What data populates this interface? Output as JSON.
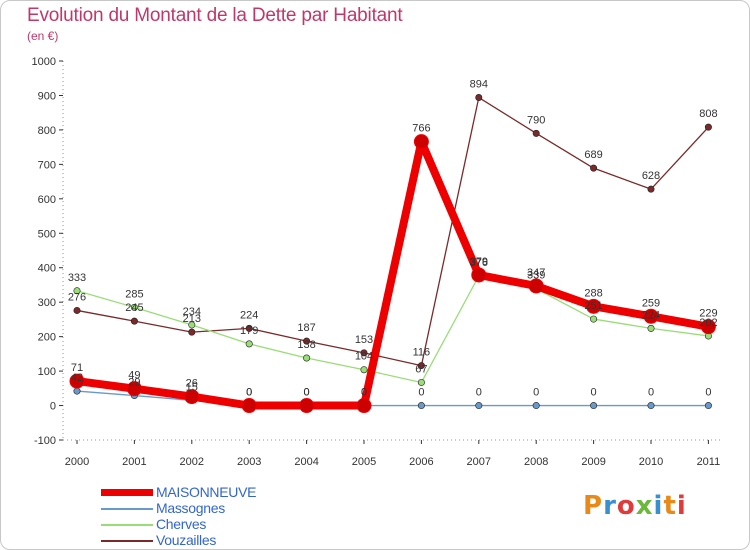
{
  "title": "Evolution du Montant de la Dette par Habitant",
  "subtitle": "(en €)",
  "logo": "Proxiti",
  "chart_data": {
    "type": "line",
    "title": "Evolution du Montant de la Dette par Habitant",
    "subtitle": "(en €)",
    "xlabel": "",
    "ylabel": "",
    "x": [
      "2000",
      "2001",
      "2002",
      "2003",
      "2004",
      "2005",
      "2006",
      "2007",
      "2008",
      "2009",
      "2010",
      "2011"
    ],
    "ylim": [
      -100,
      1000
    ],
    "yticks": [
      -100,
      0,
      100,
      200,
      300,
      400,
      500,
      600,
      700,
      800,
      900,
      1000
    ],
    "grid": false,
    "legend_position": "bottom-left",
    "series": [
      {
        "name": "MAISONNEUVE",
        "color": "#ee0000",
        "values": [
          71,
          49,
          26,
          0,
          0,
          0,
          766,
          379,
          347,
          288,
          259,
          229
        ]
      },
      {
        "name": "Massognes",
        "color": "#6699cc",
        "values": [
          42,
          29,
          15,
          0,
          0,
          0,
          0,
          0,
          0,
          0,
          0,
          0
        ]
      },
      {
        "name": "Cherves",
        "color": "#99dd77",
        "values": [
          333,
          285,
          234,
          179,
          138,
          104,
          67,
          376,
          339,
          251,
          224,
          202
        ]
      },
      {
        "name": "Vouzailles",
        "color": "#7a2a2a",
        "values": [
          276,
          245,
          213,
          224,
          187,
          153,
          116,
          894,
          790,
          689,
          628,
          808
        ]
      }
    ]
  }
}
